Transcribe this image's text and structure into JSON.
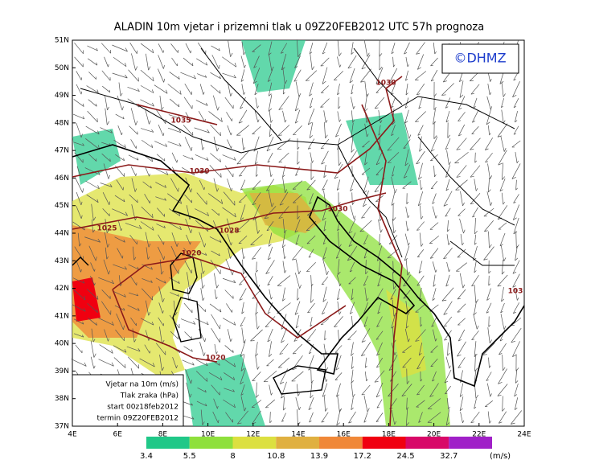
{
  "header": {
    "title": "ALADIN 10m vjetar i prizemni tlak u 09Z20FEB2012 UTC 57h prognoza"
  },
  "logo": "©DHMZ",
  "axes": {
    "lat_labels": [
      "37N",
      "38N",
      "39N",
      "40N",
      "41N",
      "42N",
      "43N",
      "44N",
      "45N",
      "46N",
      "47N",
      "48N",
      "49N",
      "50N",
      "51N"
    ],
    "lon_labels": [
      "4E",
      "6E",
      "8E",
      "10E",
      "12E",
      "14E",
      "16E",
      "18E",
      "20E",
      "22E",
      "24E"
    ]
  },
  "isobar_labels": [
    "1035",
    "1030",
    "1030",
    "1030",
    "1025",
    "1028",
    "1020",
    "1020",
    "103"
  ],
  "legend_box": [
    "Vjetar na 10m (m/s)",
    "Tlak zraka (hPa)",
    "start 00z18feb2012",
    "termin 09Z20FEB2012"
  ],
  "colorbar": {
    "levels": [
      3.4,
      5.5,
      8,
      10.8,
      13.9,
      17.2,
      24.5,
      32.7
    ],
    "colors": [
      "#20c888",
      "#8ee03c",
      "#dce040",
      "#e0b040",
      "#f08838",
      "#f00010",
      "#d80868",
      "#a020c8"
    ],
    "unit": "(m/s)"
  }
}
